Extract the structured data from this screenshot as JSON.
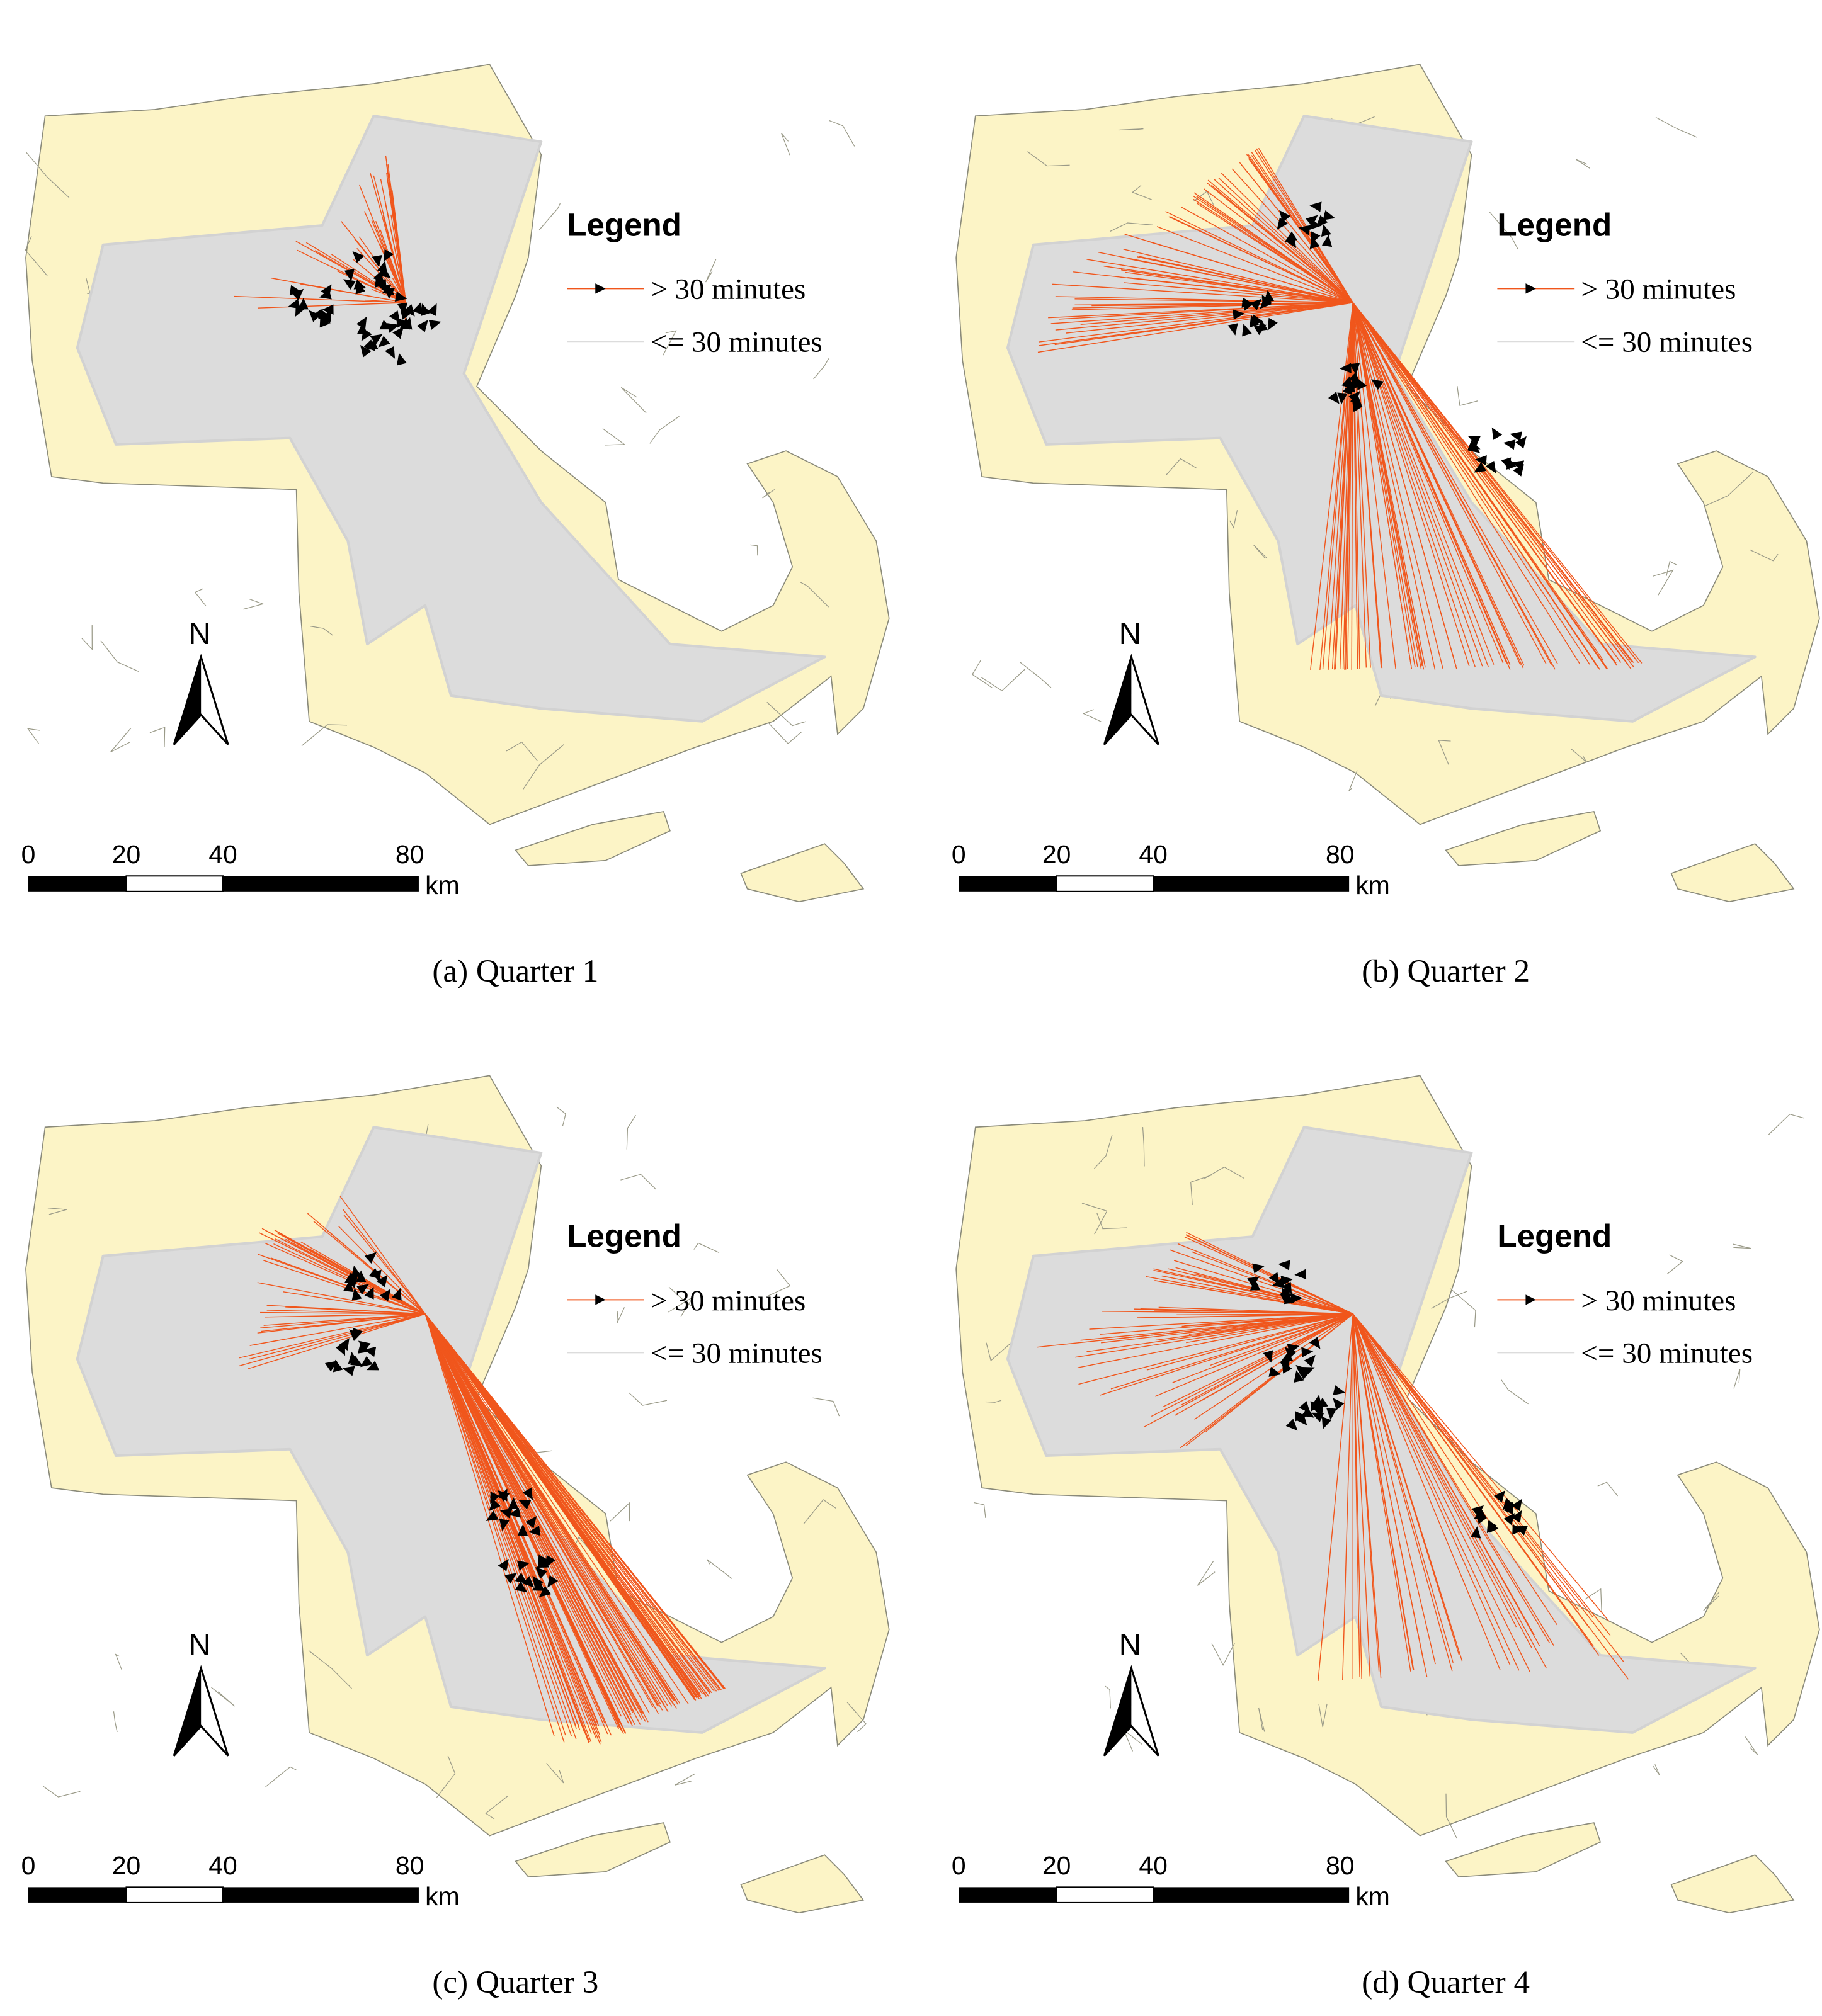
{
  "panels": [
    {
      "legend": {
        "title": "Legend",
        "items": [
          "> 30 minutes",
          "<= 30 minutes"
        ]
      },
      "north": "N",
      "scale": {
        "labels": [
          "0",
          "20",
          "40",
          "80"
        ],
        "unit": "km"
      },
      "caption": "(a) Quarter 1"
    },
    {
      "legend": {
        "title": "Legend",
        "items": [
          "> 30 minutes",
          "<= 30 minutes"
        ]
      },
      "north": "N",
      "scale": {
        "labels": [
          "0",
          "20",
          "40",
          "80"
        ],
        "unit": "km"
      },
      "caption": "(b) Quarter 2"
    },
    {
      "legend": {
        "title": "Legend",
        "items": [
          "> 30 minutes",
          "<= 30 minutes"
        ]
      },
      "north": "N",
      "scale": {
        "labels": [
          "0",
          "20",
          "40",
          "80"
        ],
        "unit": "km"
      },
      "caption": "(c) Quarter 3"
    },
    {
      "legend": {
        "title": "Legend",
        "items": [
          "> 30 minutes",
          "<= 30 minutes"
        ]
      },
      "north": "N",
      "scale": {
        "labels": [
          "0",
          "20",
          "40",
          "80"
        ],
        "unit": "km"
      },
      "caption": "(d) Quarter 4"
    }
  ]
}
